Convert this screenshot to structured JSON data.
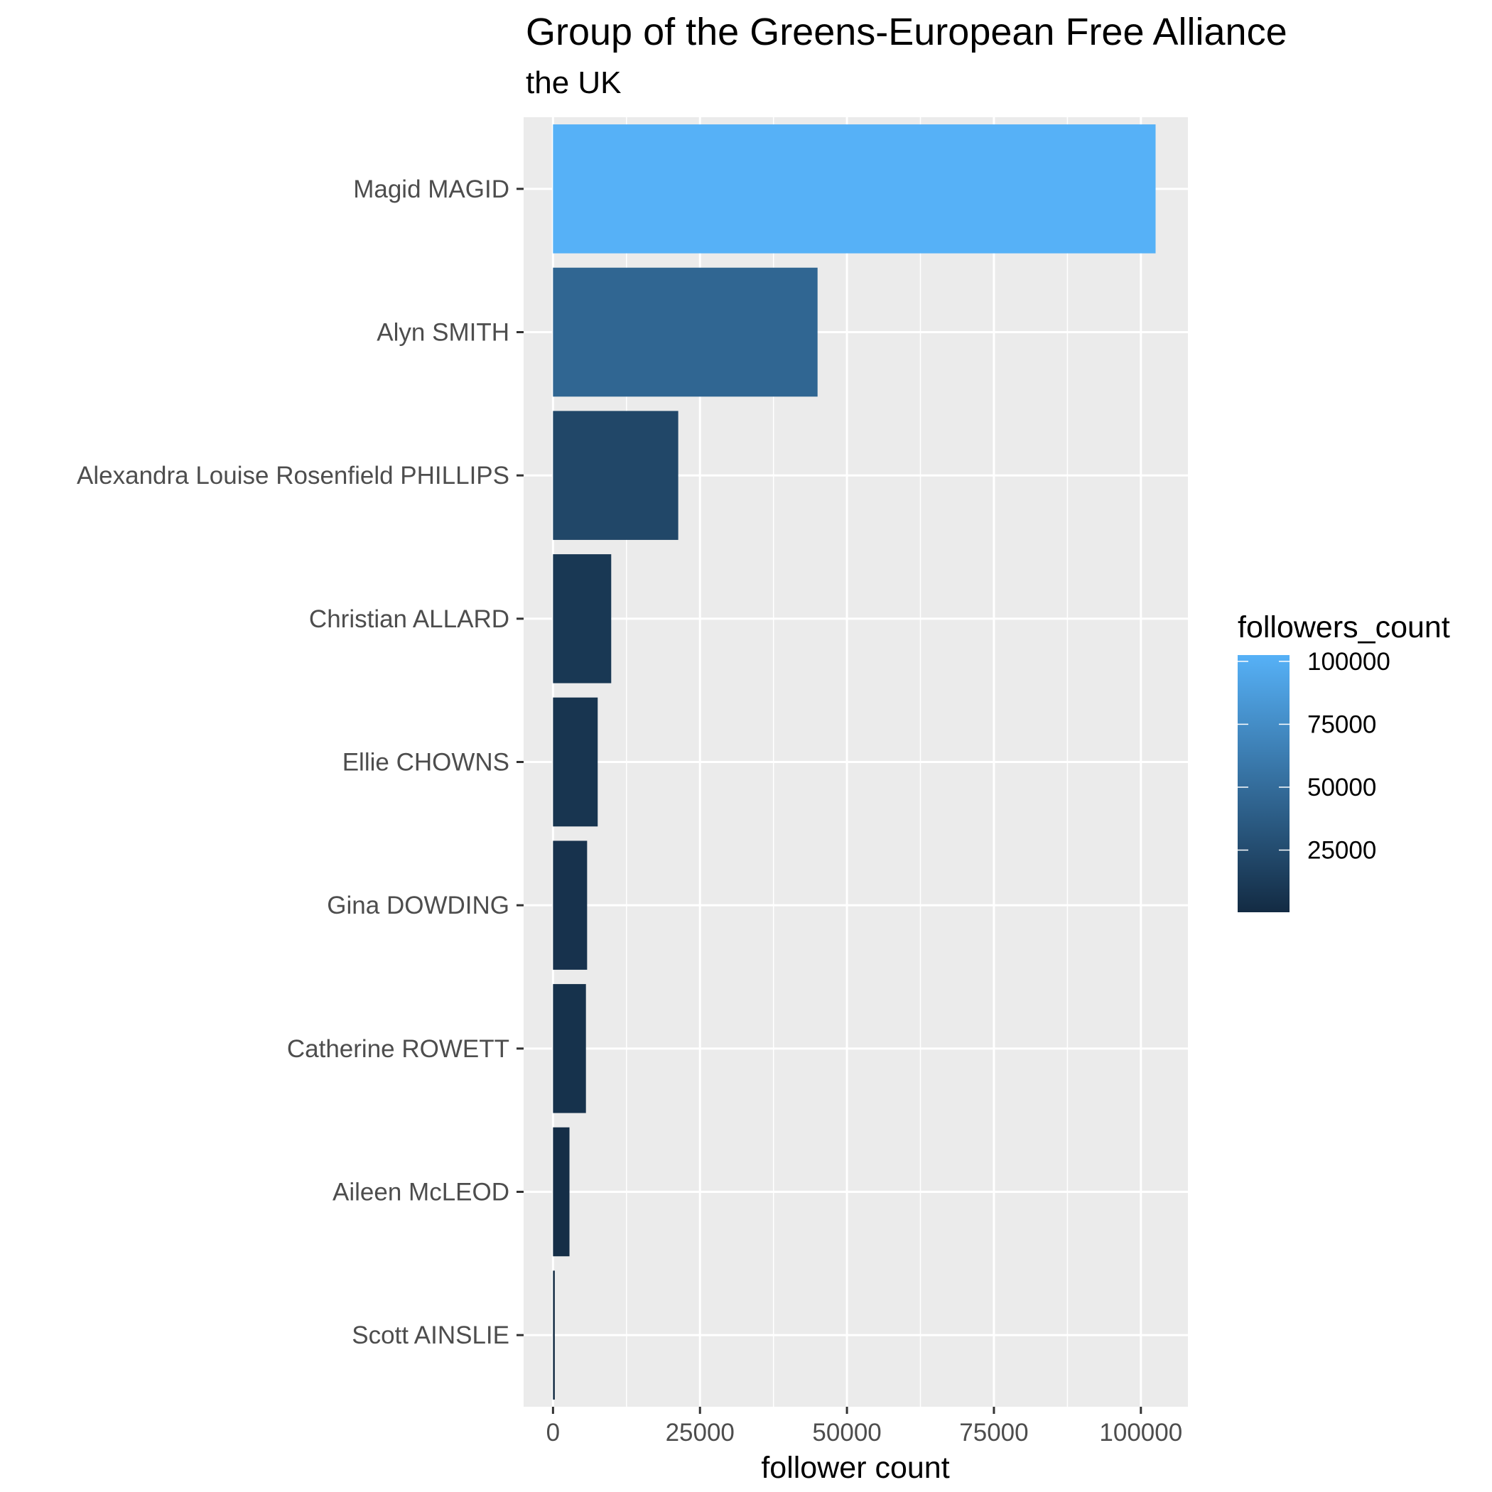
{
  "chart_data": {
    "type": "bar",
    "orientation": "horizontal",
    "title": "Group of the Greens-European Free Alliance",
    "subtitle": "the UK",
    "xlabel": "follower count",
    "ylabel": "",
    "xlim": [
      -5000,
      108000
    ],
    "x_ticks": [
      0,
      25000,
      50000,
      75000,
      100000
    ],
    "x_tick_labels": [
      "0",
      "25000",
      "50000",
      "75000",
      "100000"
    ],
    "categories": [
      "Magid MAGID",
      "Alyn SMITH",
      "Alexandra Louise Rosenfield PHILLIPS",
      "Christian ALLARD",
      "Ellie CHOWNS",
      "Gina DOWDING",
      "Catherine ROWETT",
      "Aileen McLEOD",
      "Scott AINSLIE"
    ],
    "values": [
      102500,
      45000,
      21300,
      9900,
      7600,
      5800,
      5600,
      2800,
      300
    ],
    "grid": true,
    "panel_background": "#ebebeb",
    "grid_color": "#ffffff",
    "legend": {
      "title": "followers_count",
      "position": "right",
      "type": "colorbar",
      "color_low": "#132b43",
      "color_high": "#56b1f7",
      "range": [
        300,
        102500
      ],
      "breaks": [
        25000,
        50000,
        75000,
        100000
      ],
      "break_labels": [
        "25000",
        "50000",
        "75000",
        "100000"
      ]
    }
  }
}
